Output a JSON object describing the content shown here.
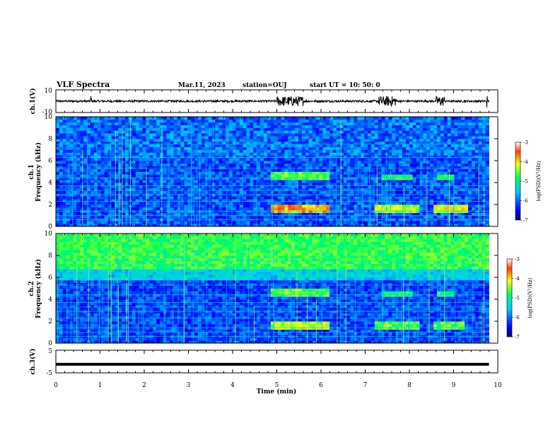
{
  "header": {
    "title": "VLF Spectra",
    "date": "Mar.11, 2023",
    "station": "station=OUJ",
    "start_ut": "start UT =   10: 50: 0"
  },
  "colors": {
    "spec_low": "#000080",
    "spec_mid": "#00c8ff",
    "spec_hi": "#ffff00",
    "spec_max": "#ff0000",
    "waveform": "#000000"
  },
  "chart_data": [
    {
      "type": "line",
      "panel": "ch1-waveform",
      "ylabel": "ch.1(V)",
      "ylim": [
        -10,
        10
      ],
      "yticks": [
        "10",
        "-10"
      ],
      "xlim": [
        0,
        10
      ],
      "bursts_min": [
        [
          5.0,
          5.6
        ],
        [
          7.3,
          7.7
        ],
        [
          8.6,
          8.8
        ]
      ]
    },
    {
      "type": "heatmap",
      "panel": "ch1-spectrogram",
      "ylabel": "ch.1\nFrequency (kHz)",
      "ylim": [
        0,
        10
      ],
      "yticks": [
        "0",
        "2",
        "4",
        "6",
        "8",
        "10"
      ],
      "xlim": [
        0,
        9.8
      ],
      "colorbar": {
        "label": "log(PSD)(V²/Hz)",
        "range": [
          -7,
          -3
        ],
        "ticks": [
          "-3",
          "-4",
          "-5",
          "-6",
          "-7"
        ]
      },
      "hotspots": [
        {
          "t": [
            4.85,
            6.15
          ],
          "f": [
            1.3,
            1.9
          ],
          "level": -3.5
        },
        {
          "t": [
            4.85,
            6.15
          ],
          "f": [
            4.3,
            4.8
          ],
          "level": -4.3
        },
        {
          "t": [
            7.2,
            8.2
          ],
          "f": [
            1.4,
            1.9
          ],
          "level": -4.0
        },
        {
          "t": [
            8.5,
            9.3
          ],
          "f": [
            1.4,
            1.9
          ],
          "level": -3.8
        },
        {
          "t": [
            7.3,
            8.0
          ],
          "f": [
            4.3,
            4.7
          ],
          "level": -4.5
        },
        {
          "t": [
            8.6,
            9.0
          ],
          "f": [
            4.3,
            4.7
          ],
          "level": -4.5
        }
      ]
    },
    {
      "type": "heatmap",
      "panel": "ch2-spectrogram",
      "ylabel": "ch.2\nFrequency (kHz)",
      "ylim": [
        0,
        10
      ],
      "yticks": [
        "0",
        "2",
        "4",
        "6",
        "8",
        "10"
      ],
      "xlim": [
        0,
        9.8
      ],
      "colorbar": {
        "label": "log(PSD)(V²/Hz)",
        "range": [
          -7,
          -3
        ],
        "ticks": [
          "-3",
          "-4",
          "-5",
          "-6",
          "-7"
        ]
      },
      "hotspots": [
        {
          "t": [
            4.85,
            6.15
          ],
          "f": [
            1.3,
            1.9
          ],
          "level": -4.0
        },
        {
          "t": [
            4.85,
            6.15
          ],
          "f": [
            4.3,
            4.8
          ],
          "level": -4.3
        },
        {
          "t": [
            7.2,
            8.2
          ],
          "f": [
            1.4,
            1.9
          ],
          "level": -4.3
        },
        {
          "t": [
            8.5,
            9.2
          ],
          "f": [
            1.4,
            1.9
          ],
          "level": -4.3
        },
        {
          "t": [
            7.3,
            8.0
          ],
          "f": [
            4.3,
            4.7
          ],
          "level": -4.5
        },
        {
          "t": [
            8.6,
            9.0
          ],
          "f": [
            4.3,
            4.7
          ],
          "level": -4.5
        }
      ]
    },
    {
      "type": "line",
      "panel": "ch3-trace",
      "ylabel": "ch.3(V)",
      "ylim": [
        -5,
        5
      ],
      "yticks": [
        "5",
        "-5"
      ],
      "xlim": [
        0,
        10
      ],
      "constant_value": -1.2
    }
  ],
  "xaxis": {
    "label": "Time (min)",
    "ticks": [
      "0",
      "1",
      "2",
      "3",
      "4",
      "5",
      "6",
      "7",
      "8",
      "9",
      "10"
    ]
  }
}
